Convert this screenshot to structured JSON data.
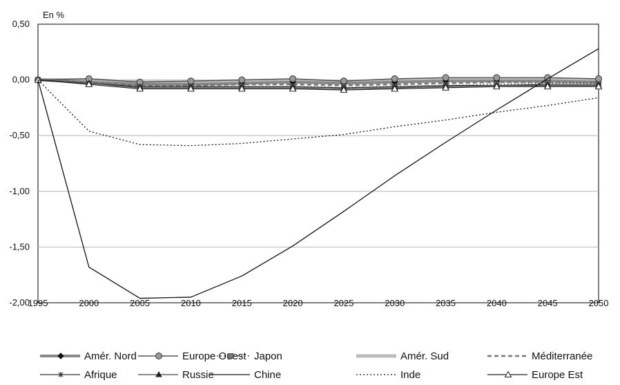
{
  "chart_data": {
    "type": "line",
    "title": "",
    "ylabel": "En %",
    "xlabel": "",
    "x": [
      1995,
      2000,
      2005,
      2010,
      2015,
      2020,
      2025,
      2030,
      2035,
      2040,
      2045,
      2050
    ],
    "x_ticks": [
      "1995",
      "2000",
      "2005",
      "2010",
      "2015",
      "2020",
      "2025",
      "2030",
      "2035",
      "2040",
      "2045",
      "2050"
    ],
    "ylim": [
      -2.0,
      0.5
    ],
    "y_ticks": [
      "0,50",
      "0,00",
      "-0,50",
      "-1,00",
      "-1,50",
      "-2,00"
    ],
    "y_tick_values": [
      0.5,
      0.0,
      -0.5,
      -1.0,
      -1.5,
      -2.0
    ],
    "grid": "horizontal",
    "legend_position": "bottom",
    "series": [
      {
        "name": "Amér. Nord",
        "values": [
          0,
          -0.02,
          -0.04,
          -0.04,
          -0.03,
          -0.02,
          -0.03,
          -0.02,
          -0.01,
          -0.01,
          -0.01,
          -0.02
        ],
        "color": "#888888",
        "dash": "",
        "width": 4,
        "marker": "diamond"
      },
      {
        "name": "Europe Ouest",
        "values": [
          0,
          0.01,
          -0.02,
          -0.01,
          0.0,
          0.01,
          -0.01,
          0.01,
          0.02,
          0.02,
          0.02,
          0.01
        ],
        "color": "#555555",
        "dash": "",
        "width": 1.5,
        "marker": "circle"
      },
      {
        "name": "Japon",
        "values": [
          0,
          -0.03,
          -0.06,
          -0.06,
          -0.06,
          -0.06,
          -0.07,
          -0.06,
          -0.05,
          -0.04,
          -0.03,
          -0.03
        ],
        "color": "#555555",
        "dash": "2,3",
        "width": 1.5,
        "marker": "square"
      },
      {
        "name": "Amér. Sud",
        "values": [
          0,
          0.0,
          -0.02,
          -0.02,
          -0.01,
          -0.01,
          -0.02,
          -0.01,
          0.0,
          0.0,
          0.0,
          -0.01
        ],
        "color": "#bbbbbb",
        "dash": "",
        "width": 5,
        "marker": "none"
      },
      {
        "name": "Méditerranée",
        "values": [
          0,
          -0.02,
          -0.05,
          -0.05,
          -0.04,
          -0.04,
          -0.05,
          -0.04,
          -0.03,
          -0.02,
          -0.02,
          -0.02
        ],
        "color": "#777777",
        "dash": "6,4",
        "width": 2.5,
        "marker": "none"
      },
      {
        "name": "Afrique",
        "values": [
          0,
          -0.03,
          -0.06,
          -0.06,
          -0.06,
          -0.06,
          -0.07,
          -0.06,
          -0.05,
          -0.05,
          -0.04,
          -0.04
        ],
        "color": "#333333",
        "dash": "",
        "width": 1.2,
        "marker": "star"
      },
      {
        "name": "Russie",
        "values": [
          0,
          -0.03,
          -0.07,
          -0.07,
          -0.07,
          -0.07,
          -0.08,
          -0.07,
          -0.06,
          -0.05,
          -0.05,
          -0.05
        ],
        "color": "#444444",
        "dash": "",
        "width": 1.2,
        "marker": "triangle-filled"
      },
      {
        "name": "Chine",
        "values": [
          0,
          -1.68,
          -1.96,
          -1.95,
          -1.76,
          -1.49,
          -1.18,
          -0.86,
          -0.56,
          -0.27,
          0.01,
          0.28
        ],
        "color": "#111111",
        "dash": "",
        "width": 1.3,
        "marker": "none"
      },
      {
        "name": "Inde",
        "values": [
          0,
          -0.46,
          -0.58,
          -0.59,
          -0.57,
          -0.53,
          -0.49,
          -0.42,
          -0.36,
          -0.29,
          -0.23,
          -0.16
        ],
        "color": "#111111",
        "dash": "2,3",
        "width": 1.3,
        "marker": "none"
      },
      {
        "name": "Europe Est",
        "values": [
          0,
          -0.04,
          -0.08,
          -0.08,
          -0.08,
          -0.08,
          -0.09,
          -0.08,
          -0.07,
          -0.06,
          -0.06,
          -0.06
        ],
        "color": "#222222",
        "dash": "",
        "width": 1.2,
        "marker": "triangle-open"
      }
    ]
  }
}
